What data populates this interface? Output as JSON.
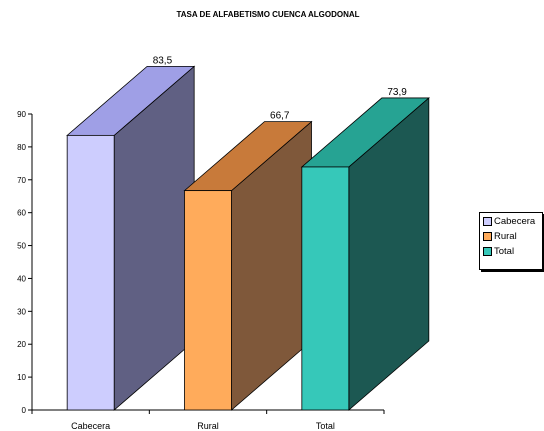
{
  "chart_data": {
    "type": "bar",
    "title": "TASA DE ALFABETISMO CUENCA ALGODONAL",
    "categories": [
      "Cabecera",
      "Rural",
      "Total"
    ],
    "values": [
      83.5,
      66.7,
      73.9
    ],
    "value_labels": [
      "83,5",
      "66,7",
      "73,9"
    ],
    "ylim": [
      0,
      90
    ],
    "yticks": [
      0,
      10,
      20,
      30,
      40,
      50,
      60,
      70,
      80,
      90
    ],
    "xlabel": "",
    "ylabel": "",
    "three_d": true,
    "legend": {
      "position": "right",
      "entries": [
        "Cabecera",
        "Rural",
        "Total"
      ]
    },
    "colors": {
      "front": [
        "#cdcdfe",
        "#ffab5b",
        "#36c8b9"
      ],
      "side": [
        "#606083",
        "#7f583a",
        "#1c5852"
      ],
      "top": [
        "#9f9fe6",
        "#c87a3a",
        "#26a393"
      ]
    }
  }
}
